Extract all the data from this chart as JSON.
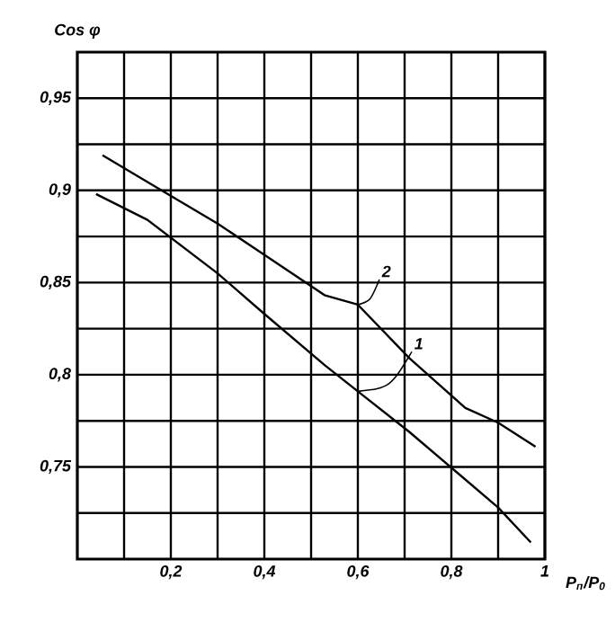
{
  "chart_data": {
    "type": "line",
    "xlabel": "P$_{п}$/P$_{0}$",
    "ylabel": "Cos φ",
    "xlim": [
      0,
      1
    ],
    "ylim": [
      0.7,
      0.975
    ],
    "xticks": [
      {
        "value": 0.1,
        "label": null
      },
      {
        "value": 0.2,
        "label": "0,2"
      },
      {
        "value": 0.3,
        "label": null
      },
      {
        "value": 0.4,
        "label": "0,4"
      },
      {
        "value": 0.5,
        "label": null
      },
      {
        "value": 0.6,
        "label": "0,6"
      },
      {
        "value": 0.7,
        "label": null
      },
      {
        "value": 0.8,
        "label": "0,8"
      },
      {
        "value": 0.9,
        "label": null
      },
      {
        "value": 1,
        "label": "1"
      }
    ],
    "yticks": [
      {
        "value": 0.725,
        "label": null
      },
      {
        "value": 0.75,
        "label": "0,75"
      },
      {
        "value": 0.775,
        "label": null
      },
      {
        "value": 0.8,
        "label": "0,8"
      },
      {
        "value": 0.825,
        "label": null
      },
      {
        "value": 0.85,
        "label": "0,85"
      },
      {
        "value": 0.875,
        "label": null
      },
      {
        "value": 0.9,
        "label": "0,9"
      },
      {
        "value": 0.925,
        "label": null
      },
      {
        "value": 0.95,
        "label": "0,95"
      }
    ],
    "grid": true,
    "marker": "none",
    "line_style": "solid",
    "series": [
      {
        "color": "#000000",
        "x": [
          0.04,
          0.15,
          0.3,
          0.4,
          0.53,
          0.6,
          0.71,
          0.9,
          0.97
        ],
        "values": [
          0.898,
          0.884,
          0.855,
          0.833,
          0.805,
          0.791,
          0.769,
          0.728,
          0.709
        ]
      },
      {
        "color": "#000000",
        "x": [
          0.054,
          0.18,
          0.3,
          0.4,
          0.53,
          0.6,
          0.71,
          0.83,
          0.9,
          0.98
        ],
        "values": [
          0.919,
          0.9,
          0.882,
          0.865,
          0.843,
          0.838,
          0.809,
          0.782,
          0.774,
          0.761
        ]
      }
    ],
    "annotations": [
      {
        "text": "2",
        "x": 0.6,
        "y": 0.838
      },
      {
        "text": "1",
        "x": 0.6,
        "y": 0.791
      }
    ]
  }
}
